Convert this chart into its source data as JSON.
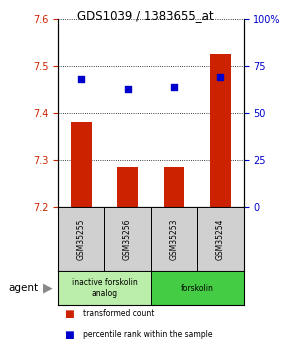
{
  "title": "GDS1039 / 1383655_at",
  "samples": [
    "GSM35255",
    "GSM35256",
    "GSM35253",
    "GSM35254"
  ],
  "bar_values": [
    7.38,
    7.285,
    7.285,
    7.525
  ],
  "percentile_values": [
    68,
    63,
    64,
    69
  ],
  "ylim_left": [
    7.2,
    7.6
  ],
  "ylim_right": [
    0,
    100
  ],
  "yticks_left": [
    7.2,
    7.3,
    7.4,
    7.5,
    7.6
  ],
  "yticks_right": [
    0,
    25,
    50,
    75,
    100
  ],
  "ytick_labels_right": [
    "0",
    "25",
    "50",
    "75",
    "100%"
  ],
  "bar_color": "#cc2200",
  "dot_color": "#0000cc",
  "bar_bottom": 7.2,
  "groups": [
    {
      "label": "inactive forskolin\nanalog",
      "indices": [
        0,
        1
      ],
      "color": "#bbeeaa"
    },
    {
      "label": "forskolin",
      "indices": [
        2,
        3
      ],
      "color": "#44cc44"
    }
  ],
  "agent_label": "agent",
  "legend_items": [
    {
      "color": "#cc2200",
      "label": "transformed count"
    },
    {
      "color": "#0000cc",
      "label": "percentile rank within the sample"
    }
  ],
  "grid_color": "#000000",
  "sample_bg": "#d0d0d0",
  "fig_bg": "#ffffff"
}
